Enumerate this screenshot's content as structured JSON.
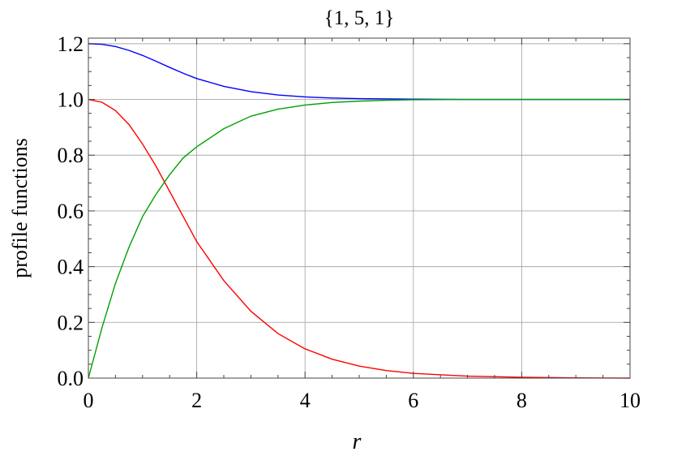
{
  "chart_data": {
    "type": "line",
    "title": "{1, 5, 1}",
    "xlabel": "r",
    "ylabel": "profile functions",
    "xlim": [
      0,
      10
    ],
    "ylim": [
      0,
      1.22
    ],
    "x_ticks": [
      0,
      2,
      4,
      6,
      8,
      10
    ],
    "x_tick_labels": [
      "0",
      "2",
      "4",
      "6",
      "8",
      "10"
    ],
    "y_ticks": [
      0,
      0.2,
      0.4,
      0.6,
      0.8,
      1.0,
      1.2
    ],
    "y_tick_labels": [
      "0.0",
      "0.2",
      "0.4",
      "0.6",
      "0.8",
      "1.0",
      "1.2"
    ],
    "grid": true,
    "series": [
      {
        "color": "#0000ff",
        "x": [
          0,
          0.25,
          0.5,
          0.75,
          1.0,
          1.25,
          1.5,
          1.75,
          2.0,
          2.5,
          3.0,
          3.5,
          4.0,
          4.5,
          5.0,
          6.0,
          7.0,
          8.0,
          9.0,
          10.0
        ],
        "y": [
          1.2,
          1.198,
          1.19,
          1.176,
          1.158,
          1.137,
          1.115,
          1.094,
          1.075,
          1.047,
          1.028,
          1.016,
          1.009,
          1.005,
          1.003,
          1.001,
          1.0,
          1.0,
          1.0,
          1.0
        ]
      },
      {
        "color": "#ff0000",
        "x": [
          0,
          0.25,
          0.5,
          0.75,
          1.0,
          1.25,
          1.5,
          1.75,
          2.0,
          2.5,
          3.0,
          3.5,
          4.0,
          4.5,
          5.0,
          5.5,
          6.0,
          7.0,
          8.0,
          9.0,
          10.0
        ],
        "y": [
          1.0,
          0.99,
          0.96,
          0.91,
          0.84,
          0.76,
          0.67,
          0.58,
          0.49,
          0.35,
          0.24,
          0.16,
          0.105,
          0.068,
          0.043,
          0.027,
          0.017,
          0.007,
          0.003,
          0.001,
          0.0
        ]
      },
      {
        "color": "#00a000",
        "x": [
          0,
          0.25,
          0.5,
          0.75,
          1.0,
          1.25,
          1.5,
          1.75,
          2.0,
          2.5,
          3.0,
          3.5,
          4.0,
          4.5,
          5.0,
          5.5,
          6.0,
          7.0,
          8.0,
          9.0,
          10.0
        ],
        "y": [
          0.0,
          0.18,
          0.34,
          0.47,
          0.58,
          0.66,
          0.73,
          0.79,
          0.83,
          0.895,
          0.94,
          0.965,
          0.98,
          0.989,
          0.994,
          0.997,
          0.999,
          1.0,
          1.0,
          1.0,
          1.0
        ]
      }
    ]
  }
}
